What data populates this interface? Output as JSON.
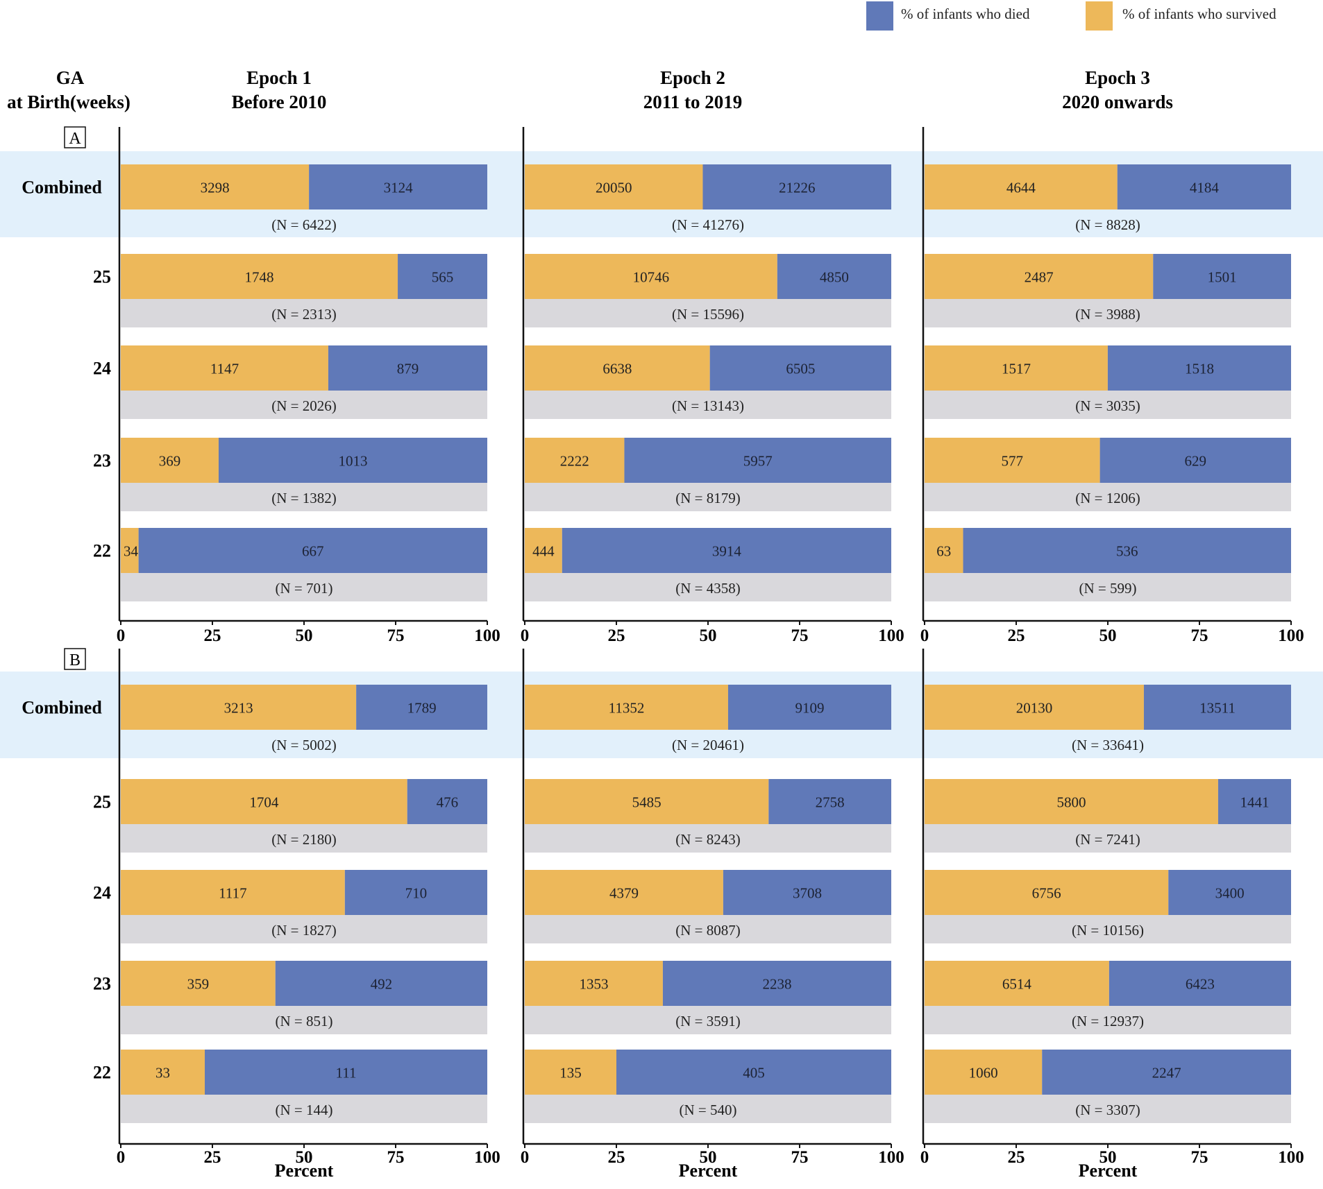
{
  "legend": [
    {
      "label": "% of infants who died",
      "color": "#6079B8"
    },
    {
      "label": "% of infants who survived",
      "color": "#EDB85A"
    }
  ],
  "row_header": [
    "GA",
    "at Birth(weeks)"
  ],
  "columns": [
    {
      "title": "Epoch 1",
      "subtitle": "Before 2010"
    },
    {
      "title": "Epoch 2",
      "subtitle": "2011 to 2019"
    },
    {
      "title": "Epoch 3",
      "subtitle": "2020 onwards"
    }
  ],
  "colors": {
    "survived": "#EDB85A",
    "died": "#6079B8",
    "total_band": "#D9D8DC",
    "combined_highlight": "#E2F0FB"
  },
  "chart_data": {
    "type": "bar",
    "orientation": "horizontal",
    "stacked": true,
    "xlabel": "Percent",
    "xlim": [
      0,
      100
    ],
    "xticks": [
      0,
      25,
      50,
      75,
      100
    ],
    "categories": [
      "Combined",
      "25",
      "24",
      "23",
      "22"
    ],
    "series_names": [
      "% of infants who survived",
      "% of infants who died"
    ],
    "panels": [
      {
        "label": "A",
        "epochs": [
          {
            "name": "Epoch 1",
            "rows": [
              {
                "ga": "Combined",
                "survived": 3298,
                "died": 3124,
                "n_label": "(N = 6422)"
              },
              {
                "ga": "25",
                "survived": 1748,
                "died": 565,
                "n_label": "(N = 2313)"
              },
              {
                "ga": "24",
                "survived": 1147,
                "died": 879,
                "n_label": "(N = 2026)"
              },
              {
                "ga": "23",
                "survived": 369,
                "died": 1013,
                "n_label": "(N = 1382)"
              },
              {
                "ga": "22",
                "survived": 34,
                "died": 667,
                "n_label": "(N = 701)"
              }
            ]
          },
          {
            "name": "Epoch 2",
            "rows": [
              {
                "ga": "Combined",
                "survived": 20050,
                "died": 21226,
                "n_label": "(N = 41276)"
              },
              {
                "ga": "25",
                "survived": 10746,
                "died": 4850,
                "n_label": "(N = 15596)"
              },
              {
                "ga": "24",
                "survived": 6638,
                "died": 6505,
                "n_label": "(N = 13143)"
              },
              {
                "ga": "23",
                "survived": 2222,
                "died": 5957,
                "n_label": "(N = 8179)"
              },
              {
                "ga": "22",
                "survived": 444,
                "died": 3914,
                "n_label": "(N = 4358)"
              }
            ]
          },
          {
            "name": "Epoch 3",
            "rows": [
              {
                "ga": "Combined",
                "survived": 4644,
                "died": 4184,
                "n_label": "(N = 8828)"
              },
              {
                "ga": "25",
                "survived": 2487,
                "died": 1501,
                "n_label": "(N = 3988)"
              },
              {
                "ga": "24",
                "survived": 1517,
                "died": 1518,
                "n_label": "(N = 3035)"
              },
              {
                "ga": "23",
                "survived": 577,
                "died": 629,
                "n_label": "(N = 1206)"
              },
              {
                "ga": "22",
                "survived": 63,
                "died": 536,
                "n_label": "(N = 599)"
              }
            ]
          }
        ]
      },
      {
        "label": "B",
        "epochs": [
          {
            "name": "Epoch 1",
            "rows": [
              {
                "ga": "Combined",
                "survived": 3213,
                "died": 1789,
                "n_label": "(N = 5002)"
              },
              {
                "ga": "25",
                "survived": 1704,
                "died": 476,
                "n_label": "(N = 2180)"
              },
              {
                "ga": "24",
                "survived": 1117,
                "died": 710,
                "n_label": "(N = 1827)"
              },
              {
                "ga": "23",
                "survived": 359,
                "died": 492,
                "n_label": "(N = 851)"
              },
              {
                "ga": "22",
                "survived": 33,
                "died": 111,
                "n_label": "(N = 144)"
              }
            ]
          },
          {
            "name": "Epoch 2",
            "rows": [
              {
                "ga": "Combined",
                "survived": 11352,
                "died": 9109,
                "n_label": "(N = 20461)"
              },
              {
                "ga": "25",
                "survived": 5485,
                "died": 2758,
                "n_label": "(N = 8243)"
              },
              {
                "ga": "24",
                "survived": 4379,
                "died": 3708,
                "n_label": "(N = 8087)"
              },
              {
                "ga": "23",
                "survived": 1353,
                "died": 2238,
                "n_label": "(N = 3591)"
              },
              {
                "ga": "22",
                "survived": 135,
                "died": 405,
                "n_label": "(N = 540)"
              }
            ]
          },
          {
            "name": "Epoch 3",
            "rows": [
              {
                "ga": "Combined",
                "survived": 20130,
                "died": 13511,
                "n_label": "(N = 33641)"
              },
              {
                "ga": "25",
                "survived": 5800,
                "died": 1441,
                "n_label": "(N = 7241)"
              },
              {
                "ga": "24",
                "survived": 6756,
                "died": 3400,
                "n_label": "(N = 10156)"
              },
              {
                "ga": "23",
                "survived": 6514,
                "died": 6423,
                "n_label": "(N = 12937)"
              },
              {
                "ga": "22",
                "survived": 1060,
                "died": 2247,
                "n_label": "(N = 3307)"
              }
            ]
          }
        ]
      }
    ]
  }
}
